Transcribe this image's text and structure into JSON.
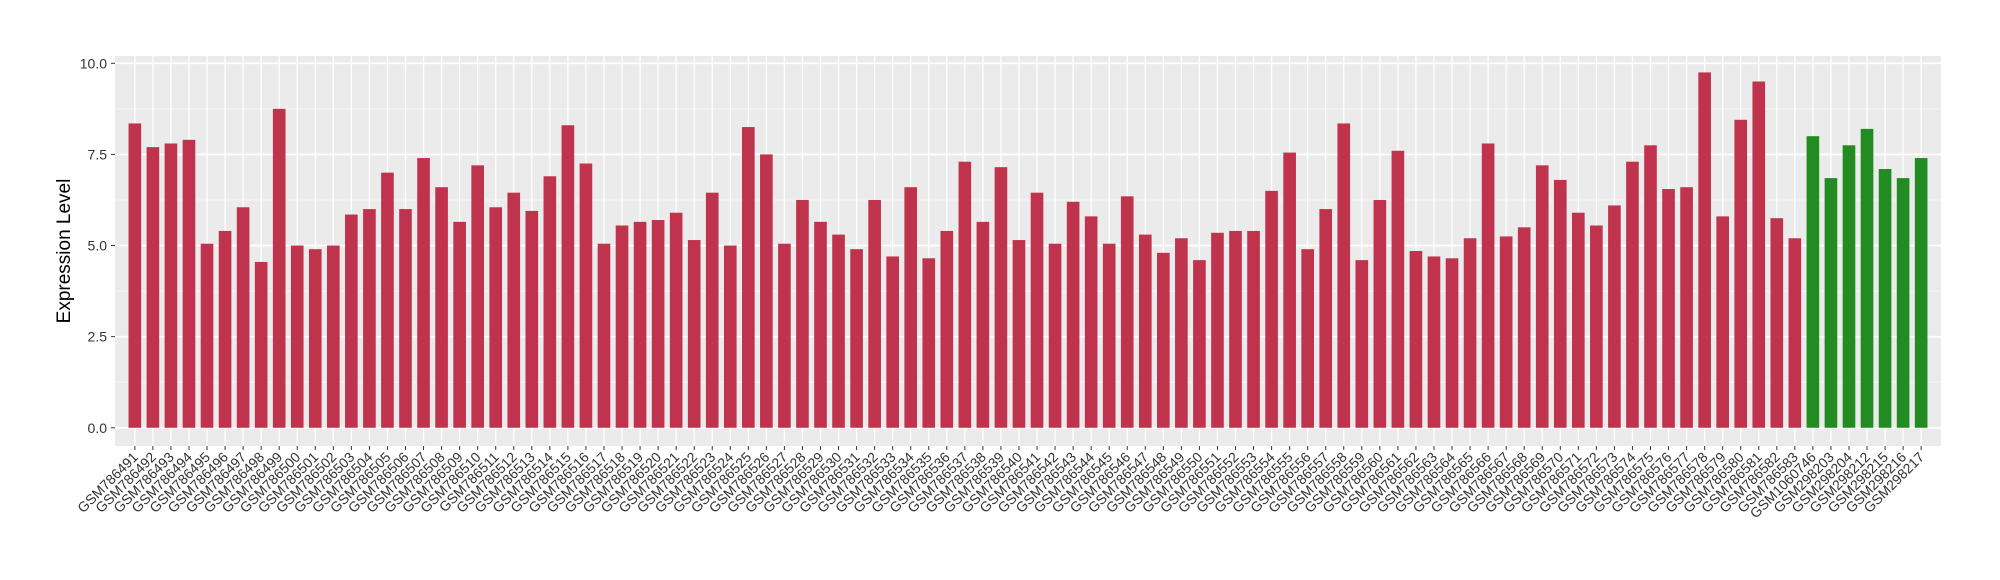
{
  "chart_data": {
    "type": "bar",
    "y_label": "Expression Level",
    "categories": [
      "GSM786491",
      "GSM786492",
      "GSM786493",
      "GSM786494",
      "GSM786495",
      "GSM786496",
      "GSM786497",
      "GSM786498",
      "GSM786499",
      "GSM786500",
      "GSM786501",
      "GSM786502",
      "GSM786503",
      "GSM786504",
      "GSM786505",
      "GSM786506",
      "GSM786507",
      "GSM786508",
      "GSM786509",
      "GSM786510",
      "GSM786511",
      "GSM786512",
      "GSM786513",
      "GSM786514",
      "GSM786515",
      "GSM786516",
      "GSM786517",
      "GSM786518",
      "GSM786519",
      "GSM786520",
      "GSM786521",
      "GSM786522",
      "GSM786523",
      "GSM786524",
      "GSM786525",
      "GSM786526",
      "GSM786527",
      "GSM786528",
      "GSM786529",
      "GSM786530",
      "GSM786531",
      "GSM786532",
      "GSM786533",
      "GSM786534",
      "GSM786535",
      "GSM786536",
      "GSM786537",
      "GSM786538",
      "GSM786539",
      "GSM786540",
      "GSM786541",
      "GSM786542",
      "GSM786543",
      "GSM786544",
      "GSM786545",
      "GSM786546",
      "GSM786547",
      "GSM786548",
      "GSM786549",
      "GSM786550",
      "GSM786551",
      "GSM786552",
      "GSM786553",
      "GSM786554",
      "GSM786555",
      "GSM786556",
      "GSM786557",
      "GSM786558",
      "GSM786559",
      "GSM786560",
      "GSM786561",
      "GSM786562",
      "GSM786563",
      "GSM786564",
      "GSM786565",
      "GSM786566",
      "GSM786567",
      "GSM786568",
      "GSM786569",
      "GSM786570",
      "GSM786571",
      "GSM786572",
      "GSM786573",
      "GSM786574",
      "GSM786575",
      "GSM786576",
      "GSM786577",
      "GSM786578",
      "GSM786579",
      "GSM786580",
      "GSM786581",
      "GSM786582",
      "GSM786583",
      "GSM1060746",
      "GSM298203",
      "GSM298204",
      "GSM298212",
      "GSM298215",
      "GSM298216",
      "GSM298217"
    ],
    "values": [
      8.35,
      7.7,
      7.8,
      7.9,
      5.05,
      5.4,
      6.05,
      4.55,
      8.75,
      5.0,
      4.9,
      5.0,
      5.85,
      6.0,
      7.0,
      6.0,
      7.4,
      6.6,
      5.65,
      7.2,
      6.05,
      6.45,
      5.95,
      6.9,
      8.3,
      7.25,
      5.05,
      5.55,
      5.65,
      5.7,
      5.9,
      5.15,
      6.45,
      5.0,
      8.25,
      7.5,
      5.05,
      6.25,
      5.65,
      5.3,
      4.9,
      6.25,
      4.7,
      6.6,
      4.65,
      5.4,
      7.3,
      5.65,
      7.15,
      5.15,
      6.45,
      5.05,
      6.2,
      5.8,
      5.05,
      6.35,
      5.3,
      4.8,
      5.2,
      4.6,
      5.35,
      5.4,
      5.4,
      6.5,
      7.55,
      4.9,
      6.0,
      8.35,
      4.6,
      6.25,
      7.6,
      4.85,
      4.7,
      4.65,
      5.2,
      7.8,
      5.25,
      5.5,
      7.2,
      6.8,
      5.9,
      5.55,
      6.1,
      7.3,
      7.75,
      6.55,
      6.6,
      9.75,
      5.8,
      8.45,
      9.5,
      5.75,
      5.2,
      8.0,
      6.85,
      7.75,
      8.2,
      7.1,
      6.85,
      7.4
    ],
    "colors": [
      "#c0334d",
      "#c0334d",
      "#c0334d",
      "#c0334d",
      "#c0334d",
      "#c0334d",
      "#c0334d",
      "#c0334d",
      "#c0334d",
      "#c0334d",
      "#c0334d",
      "#c0334d",
      "#c0334d",
      "#c0334d",
      "#c0334d",
      "#c0334d",
      "#c0334d",
      "#c0334d",
      "#c0334d",
      "#c0334d",
      "#c0334d",
      "#c0334d",
      "#c0334d",
      "#c0334d",
      "#c0334d",
      "#c0334d",
      "#c0334d",
      "#c0334d",
      "#c0334d",
      "#c0334d",
      "#c0334d",
      "#c0334d",
      "#c0334d",
      "#c0334d",
      "#c0334d",
      "#c0334d",
      "#c0334d",
      "#c0334d",
      "#c0334d",
      "#c0334d",
      "#c0334d",
      "#c0334d",
      "#c0334d",
      "#c0334d",
      "#c0334d",
      "#c0334d",
      "#c0334d",
      "#c0334d",
      "#c0334d",
      "#c0334d",
      "#c0334d",
      "#c0334d",
      "#c0334d",
      "#c0334d",
      "#c0334d",
      "#c0334d",
      "#c0334d",
      "#c0334d",
      "#c0334d",
      "#c0334d",
      "#c0334d",
      "#c0334d",
      "#c0334d",
      "#c0334d",
      "#c0334d",
      "#c0334d",
      "#c0334d",
      "#c0334d",
      "#c0334d",
      "#c0334d",
      "#c0334d",
      "#c0334d",
      "#c0334d",
      "#c0334d",
      "#c0334d",
      "#c0334d",
      "#c0334d",
      "#c0334d",
      "#c0334d",
      "#c0334d",
      "#c0334d",
      "#c0334d",
      "#c0334d",
      "#c0334d",
      "#c0334d",
      "#c0334d",
      "#c0334d",
      "#c0334d",
      "#c0334d",
      "#c0334d",
      "#c0334d",
      "#c0334d",
      "#c0334d",
      "#228b22",
      "#228b22",
      "#228b22",
      "#228b22",
      "#228b22",
      "#228b22",
      "#228b22"
    ],
    "ylim": [
      -0.5,
      10.2
    ],
    "yticks": [
      {
        "value": 0,
        "label": "0.0"
      },
      {
        "value": 2.5,
        "label": "2.5"
      },
      {
        "value": 5,
        "label": "5.0"
      },
      {
        "value": 7.5,
        "label": "7.5"
      },
      {
        "value": 10,
        "label": "10.0"
      }
    ],
    "grid": true
  }
}
